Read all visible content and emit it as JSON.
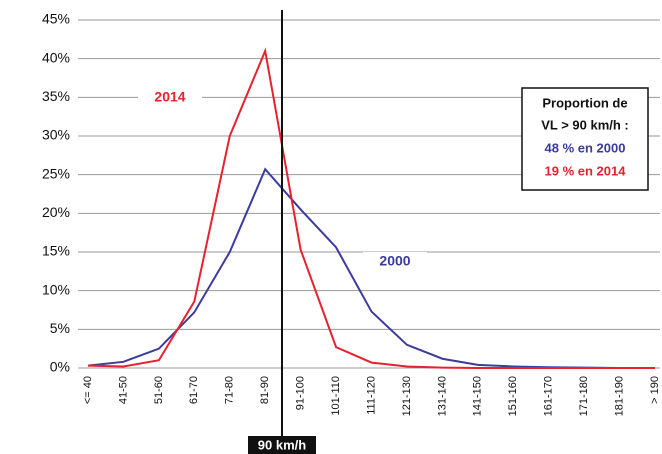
{
  "chart_data": {
    "type": "line",
    "categories": [
      "<= 40",
      "41-50",
      "51-60",
      "61-70",
      "71-80",
      "81-90",
      "91-100",
      "101-110",
      "111-120",
      "121-130",
      "131-140",
      "141-150",
      "151-160",
      "161-170",
      "171-180",
      "181-190",
      "> 190"
    ],
    "series": [
      {
        "name": "2000",
        "color": "#3b3b9c",
        "values": [
          0.3,
          0.8,
          2.5,
          7.2,
          15,
          25.7,
          20.5,
          15.6,
          7.3,
          3,
          1.2,
          0.4,
          0.2,
          0.1,
          0.05,
          0,
          0
        ]
      },
      {
        "name": "2014",
        "color": "#e8212f",
        "values": [
          0.3,
          0.2,
          1,
          8.6,
          30,
          41,
          15.3,
          2.7,
          0.7,
          0.2,
          0.05,
          0,
          0,
          0,
          0,
          0,
          0
        ]
      }
    ],
    "ylim": [
      0,
      45
    ],
    "yticks": [
      {
        "value": 0,
        "label": "0%"
      },
      {
        "value": 5,
        "label": "5%"
      },
      {
        "value": 10,
        "label": "10%"
      },
      {
        "value": 15,
        "label": "15%"
      },
      {
        "value": 20,
        "label": "20%"
      },
      {
        "value": 25,
        "label": "25%"
      },
      {
        "value": 30,
        "label": "30%"
      },
      {
        "value": 35,
        "label": "35%"
      },
      {
        "value": 40,
        "label": "40%"
      },
      {
        "value": 45,
        "label": "45%"
      }
    ],
    "grid": true,
    "threshold_label": "90 km/h",
    "info_box": [
      "Proportion de",
      "VL > 90 km/h :",
      "48 % en 2000",
      "19 % en 2014"
    ]
  }
}
